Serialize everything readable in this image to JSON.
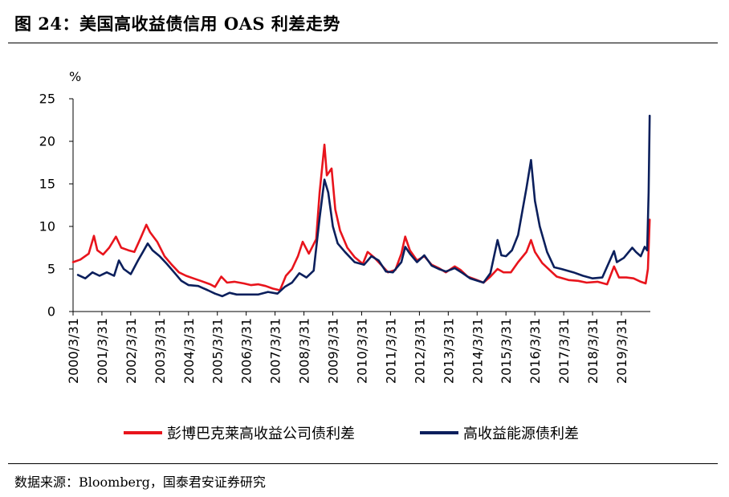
{
  "figure_title": "图 24：美国高收益债信用 OAS 利差走势",
  "source_note": "数据来源：Bloomberg，国泰君安证券研究",
  "colors": {
    "series_red": "#e8141c",
    "series_navy": "#0b1f5c",
    "axis": "#000000"
  },
  "chart_data": {
    "type": "line",
    "ylabel": "%",
    "ylim": [
      0,
      25
    ],
    "yticks": [
      "0",
      "5",
      "10",
      "15",
      "20",
      "25"
    ],
    "xlim": [
      "2000-03-31",
      "2020-03-31"
    ],
    "xticks": [
      "2000/3/31",
      "2001/3/31",
      "2002/3/31",
      "2003/3/31",
      "2004/3/31",
      "2005/3/31",
      "2006/3/31",
      "2007/3/31",
      "2008/3/31",
      "2009/3/31",
      "2010/3/31",
      "2011/3/31",
      "2012/3/31",
      "2013/3/31",
      "2014/3/31",
      "2015/3/31",
      "2016/3/31",
      "2017/3/31",
      "2018/3/31",
      "2019/3/31"
    ],
    "legend_position": "bottom",
    "grid": false,
    "series": [
      {
        "name": "彭博巴克莱高收益公司债利差",
        "color": "#e8141c",
        "points": [
          [
            "2000-03-31",
            5.8
          ],
          [
            "2000-07-01",
            6.1
          ],
          [
            "2000-10-15",
            6.8
          ],
          [
            "2000-12-20",
            8.9
          ],
          [
            "2001-02-01",
            7.2
          ],
          [
            "2001-04-15",
            6.7
          ],
          [
            "2001-07-01",
            7.5
          ],
          [
            "2001-09-25",
            8.8
          ],
          [
            "2001-12-01",
            7.5
          ],
          [
            "2002-03-01",
            7.2
          ],
          [
            "2002-05-15",
            7.0
          ],
          [
            "2002-08-01",
            8.6
          ],
          [
            "2002-10-15",
            10.2
          ],
          [
            "2002-12-01",
            9.3
          ],
          [
            "2003-03-01",
            8.2
          ],
          [
            "2003-06-01",
            6.5
          ],
          [
            "2003-09-01",
            5.5
          ],
          [
            "2003-12-01",
            4.6
          ],
          [
            "2004-03-01",
            4.2
          ],
          [
            "2004-06-01",
            3.9
          ],
          [
            "2004-09-01",
            3.6
          ],
          [
            "2004-12-31",
            3.2
          ],
          [
            "2005-03-01",
            2.9
          ],
          [
            "2005-05-20",
            4.1
          ],
          [
            "2005-08-01",
            3.4
          ],
          [
            "2005-11-01",
            3.5
          ],
          [
            "2006-03-01",
            3.3
          ],
          [
            "2006-06-01",
            3.1
          ],
          [
            "2006-09-01",
            3.2
          ],
          [
            "2006-12-01",
            3.0
          ],
          [
            "2007-03-01",
            2.7
          ],
          [
            "2007-06-01",
            2.5
          ],
          [
            "2007-08-15",
            4.2
          ],
          [
            "2007-11-01",
            5.0
          ],
          [
            "2008-01-15",
            6.5
          ],
          [
            "2008-03-15",
            8.2
          ],
          [
            "2008-06-01",
            6.8
          ],
          [
            "2008-09-01",
            8.5
          ],
          [
            "2008-10-15",
            14.0
          ],
          [
            "2008-12-15",
            19.6
          ],
          [
            "2009-01-15",
            16.0
          ],
          [
            "2009-03-15",
            16.8
          ],
          [
            "2009-05-01",
            12.0
          ],
          [
            "2009-07-01",
            9.5
          ],
          [
            "2009-10-01",
            7.5
          ],
          [
            "2010-01-01",
            6.4
          ],
          [
            "2010-04-15",
            5.6
          ],
          [
            "2010-06-15",
            7.0
          ],
          [
            "2010-09-01",
            6.4
          ],
          [
            "2010-12-01",
            5.5
          ],
          [
            "2011-03-01",
            4.6
          ],
          [
            "2011-06-01",
            4.9
          ],
          [
            "2011-08-15",
            6.8
          ],
          [
            "2011-10-03",
            8.8
          ],
          [
            "2011-12-01",
            7.2
          ],
          [
            "2012-03-01",
            6.0
          ],
          [
            "2012-06-01",
            6.5
          ],
          [
            "2012-09-01",
            5.5
          ],
          [
            "2012-12-01",
            5.1
          ],
          [
            "2013-03-01",
            4.6
          ],
          [
            "2013-06-20",
            5.3
          ],
          [
            "2013-09-01",
            4.9
          ],
          [
            "2013-12-01",
            4.1
          ],
          [
            "2014-03-01",
            3.8
          ],
          [
            "2014-06-20",
            3.4
          ],
          [
            "2014-09-15",
            4.1
          ],
          [
            "2014-12-15",
            5.0
          ],
          [
            "2015-03-01",
            4.6
          ],
          [
            "2015-06-01",
            4.6
          ],
          [
            "2015-09-01",
            5.8
          ],
          [
            "2015-12-15",
            7.0
          ],
          [
            "2016-02-11",
            8.4
          ],
          [
            "2016-04-01",
            7.0
          ],
          [
            "2016-07-01",
            5.7
          ],
          [
            "2016-10-01",
            4.9
          ],
          [
            "2017-01-01",
            4.1
          ],
          [
            "2017-06-01",
            3.7
          ],
          [
            "2017-10-01",
            3.6
          ],
          [
            "2018-01-15",
            3.4
          ],
          [
            "2018-06-01",
            3.5
          ],
          [
            "2018-10-01",
            3.2
          ],
          [
            "2018-12-28",
            5.3
          ],
          [
            "2019-03-01",
            4.0
          ],
          [
            "2019-06-01",
            4.0
          ],
          [
            "2019-09-01",
            3.9
          ],
          [
            "2019-12-01",
            3.5
          ],
          [
            "2020-02-01",
            3.3
          ],
          [
            "2020-03-01",
            5.0
          ],
          [
            "2020-03-23",
            10.8
          ]
        ]
      },
      {
        "name": "高收益能源债利差",
        "color": "#0b1f5c",
        "points": [
          [
            "2000-06-01",
            4.3
          ],
          [
            "2000-09-01",
            3.9
          ],
          [
            "2000-12-01",
            4.6
          ],
          [
            "2001-03-01",
            4.2
          ],
          [
            "2001-06-01",
            4.6
          ],
          [
            "2001-09-01",
            4.2
          ],
          [
            "2001-11-01",
            6.0
          ],
          [
            "2002-01-01",
            5.0
          ],
          [
            "2002-04-01",
            4.4
          ],
          [
            "2002-07-01",
            6.0
          ],
          [
            "2002-09-01",
            7.0
          ],
          [
            "2002-11-01",
            8.0
          ],
          [
            "2003-01-01",
            7.2
          ],
          [
            "2003-04-01",
            6.5
          ],
          [
            "2003-07-01",
            5.6
          ],
          [
            "2003-10-01",
            4.6
          ],
          [
            "2004-01-01",
            3.6
          ],
          [
            "2004-04-01",
            3.1
          ],
          [
            "2004-08-01",
            3.0
          ],
          [
            "2004-12-01",
            2.5
          ],
          [
            "2005-03-01",
            2.1
          ],
          [
            "2005-06-01",
            1.8
          ],
          [
            "2005-09-01",
            2.2
          ],
          [
            "2005-12-01",
            2.0
          ],
          [
            "2006-04-01",
            2.0
          ],
          [
            "2006-09-01",
            2.0
          ],
          [
            "2007-01-01",
            2.3
          ],
          [
            "2007-05-01",
            2.1
          ],
          [
            "2007-08-01",
            2.9
          ],
          [
            "2007-11-01",
            3.4
          ],
          [
            "2008-02-01",
            4.5
          ],
          [
            "2008-05-01",
            4.0
          ],
          [
            "2008-08-01",
            4.8
          ],
          [
            "2008-10-15",
            11.0
          ],
          [
            "2008-12-15",
            15.5
          ],
          [
            "2009-02-01",
            14.0
          ],
          [
            "2009-04-01",
            10.0
          ],
          [
            "2009-06-01",
            8.0
          ],
          [
            "2009-09-01",
            7.0
          ],
          [
            "2010-01-01",
            5.8
          ],
          [
            "2010-05-01",
            5.5
          ],
          [
            "2010-08-01",
            6.5
          ],
          [
            "2010-11-01",
            6.0
          ],
          [
            "2011-02-01",
            4.7
          ],
          [
            "2011-05-01",
            4.6
          ],
          [
            "2011-08-15",
            5.8
          ],
          [
            "2011-10-03",
            7.6
          ],
          [
            "2011-12-01",
            6.8
          ],
          [
            "2012-03-01",
            5.8
          ],
          [
            "2012-06-01",
            6.6
          ],
          [
            "2012-09-01",
            5.4
          ],
          [
            "2012-12-01",
            5.0
          ],
          [
            "2013-03-01",
            4.7
          ],
          [
            "2013-06-20",
            5.1
          ],
          [
            "2013-10-01",
            4.5
          ],
          [
            "2014-01-01",
            3.9
          ],
          [
            "2014-06-20",
            3.4
          ],
          [
            "2014-09-15",
            4.5
          ],
          [
            "2014-12-15",
            8.4
          ],
          [
            "2015-02-01",
            6.6
          ],
          [
            "2015-04-01",
            6.5
          ],
          [
            "2015-06-15",
            7.2
          ],
          [
            "2015-09-01",
            9.0
          ],
          [
            "2015-12-15",
            14.5
          ],
          [
            "2016-02-11",
            17.8
          ],
          [
            "2016-04-01",
            13.0
          ],
          [
            "2016-06-01",
            10.0
          ],
          [
            "2016-09-01",
            7.0
          ],
          [
            "2016-12-01",
            5.2
          ],
          [
            "2017-03-01",
            5.0
          ],
          [
            "2017-08-01",
            4.6
          ],
          [
            "2017-12-01",
            4.2
          ],
          [
            "2018-04-01",
            3.9
          ],
          [
            "2018-08-01",
            4.0
          ],
          [
            "2018-12-28",
            7.1
          ],
          [
            "2019-02-01",
            5.8
          ],
          [
            "2019-05-01",
            6.3
          ],
          [
            "2019-08-15",
            7.5
          ],
          [
            "2019-10-01",
            7.0
          ],
          [
            "2019-12-01",
            6.5
          ],
          [
            "2020-01-20",
            7.6
          ],
          [
            "2020-02-20",
            7.2
          ],
          [
            "2020-03-10",
            14.0
          ],
          [
            "2020-03-23",
            23.0
          ]
        ]
      }
    ]
  }
}
